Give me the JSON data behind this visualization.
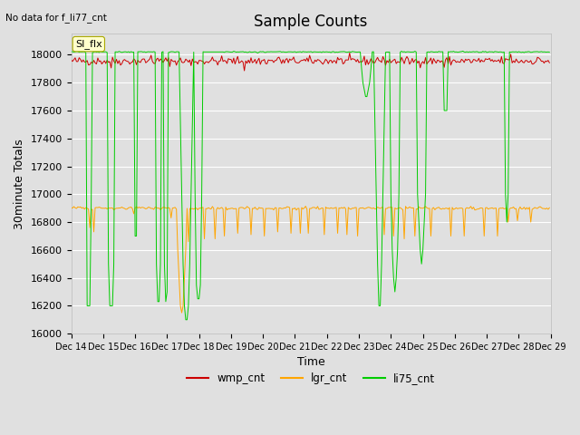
{
  "title": "Sample Counts",
  "no_data_label": "No data for f_li77_cnt",
  "ylabel": "30minute Totals",
  "xlabel": "Time",
  "ylim": [
    16000,
    18150
  ],
  "xlim": [
    0,
    360
  ],
  "bg_color": "#e0e0e0",
  "grid_color": "#ffffff",
  "x_tick_labels": [
    "Dec 14",
    "Dec 15",
    "Dec 16",
    "Dec 17",
    "Dec 18",
    "Dec 19",
    "Dec 20",
    "Dec 21",
    "Dec 22",
    "Dec 23",
    "Dec 24",
    "Dec 25",
    "Dec 26",
    "Dec 27",
    "Dec 28",
    "Dec 29"
  ],
  "x_tick_positions": [
    0,
    24,
    48,
    72,
    96,
    120,
    144,
    168,
    192,
    216,
    240,
    264,
    288,
    312,
    336,
    360
  ],
  "y_ticks": [
    16000,
    16200,
    16400,
    16600,
    16800,
    17000,
    17200,
    17400,
    17600,
    17800,
    18000
  ],
  "wmp_base": 17955,
  "wmp_noise": 15,
  "lgr_base": 16900,
  "lgr_noise": 5,
  "li75_base": 18020,
  "legend_entries": [
    "wmp_cnt",
    "lgr_cnt",
    "li75_cnt"
  ],
  "legend_colors": [
    "#cc0000",
    "#ffa500",
    "#00cc00"
  ],
  "title_fontsize": 12,
  "axis_fontsize": 9,
  "tick_fontsize": 8,
  "wmp_color": "#cc0000",
  "lgr_color": "#ffa500",
  "li75_color": "#00cc00"
}
